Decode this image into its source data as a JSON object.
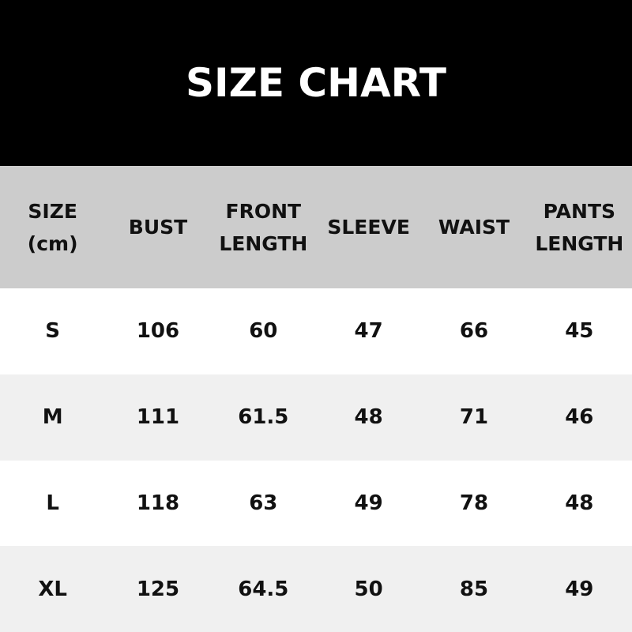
{
  "title": "SIZE CHART",
  "colors": {
    "title_bg": "#000000",
    "header_bg": "#cccccc",
    "row_alt_bg": "#f0f0f0",
    "row_bg": "#ffffff"
  },
  "table": {
    "headers": [
      [
        "SIZE",
        "(cm)"
      ],
      [
        "BUST"
      ],
      [
        "FRONT",
        "LENGTH"
      ],
      [
        "SLEEVE"
      ],
      [
        "WAIST"
      ],
      [
        "PANTS",
        "LENGTH"
      ]
    ],
    "rows": [
      [
        "S",
        "106",
        "60",
        "47",
        "66",
        "45"
      ],
      [
        "M",
        "111",
        "61.5",
        "48",
        "71",
        "46"
      ],
      [
        "L",
        "118",
        "63",
        "49",
        "78",
        "48"
      ],
      [
        "XL",
        "125",
        "64.5",
        "50",
        "85",
        "49"
      ]
    ]
  }
}
